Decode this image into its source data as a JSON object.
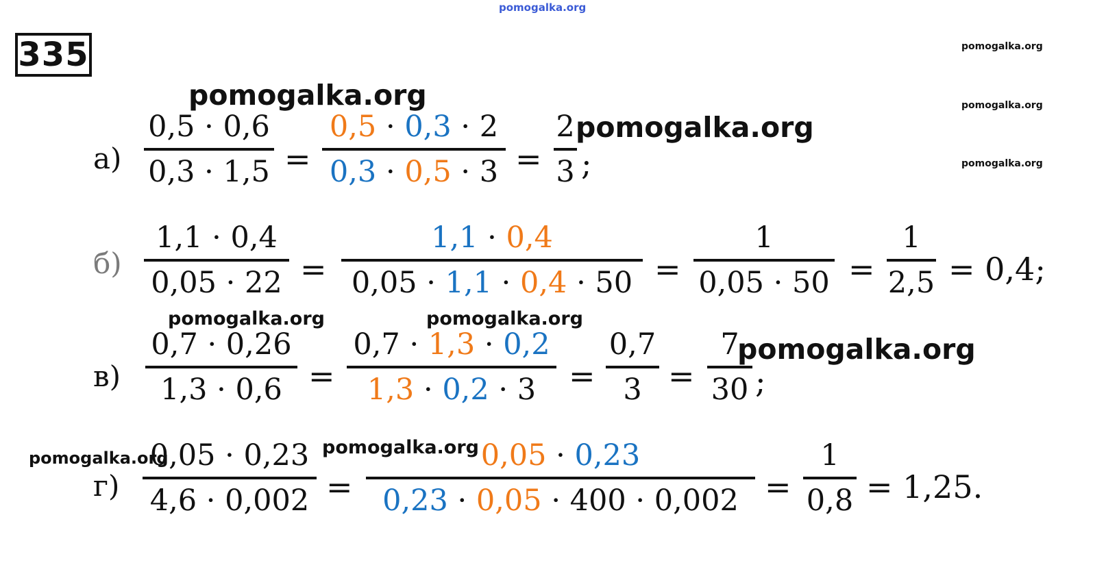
{
  "watermarks": {
    "top": "pomogalka.org",
    "big": "pomogalka.org",
    "right": "pomogalka.org"
  },
  "problem_number": "335",
  "rows": {
    "a": {
      "label": "а)",
      "f1_num": "0,5 · 0,6",
      "f1_den": "0,3 · 1,5",
      "f2_num": [
        "0,5",
        " · ",
        "0,3",
        " · 2"
      ],
      "f2_den": [
        "0,3",
        " · ",
        "0,5",
        " · 3"
      ],
      "f3_num": "2",
      "f3_den": "3",
      "end": ";"
    },
    "b": {
      "label": "б)",
      "f1_num": "1,1 · 0,4",
      "f1_den": "0,05 · 22",
      "f2_num": [
        "1,1",
        " · ",
        "0,4"
      ],
      "f2_den": [
        "0,05 · ",
        "1,1",
        " · ",
        "0,4",
        " · 50"
      ],
      "f3_num": "1",
      "f3_den": "0,05 · 50",
      "f4_num": "1",
      "f4_den": "2,5",
      "result": "= 0,4;"
    },
    "v": {
      "label": "в)",
      "f1_num": "0,7 · 0,26",
      "f1_den": "1,3 · 0,6",
      "f2_num": [
        "0,7 · ",
        "1,3",
        " · ",
        "0,2"
      ],
      "f2_den": [
        "1,3",
        " · ",
        "0,2",
        " · 3"
      ],
      "f3_num": "0,7",
      "f3_den": "3",
      "f4_num": "7",
      "f4_den": "30",
      "end": ";"
    },
    "g": {
      "label": "г)",
      "f1_num": "0,05 · 0,23",
      "f1_den": "4,6 · 0,002",
      "f2_num": [
        "0,05",
        " · ",
        "0,23"
      ],
      "f2_den": [
        "0,23",
        " · ",
        "0,05",
        " · 400 · 0,002"
      ],
      "f3_num": "1",
      "f3_den": "0,8",
      "result": "= 1,25."
    }
  },
  "equals": "="
}
